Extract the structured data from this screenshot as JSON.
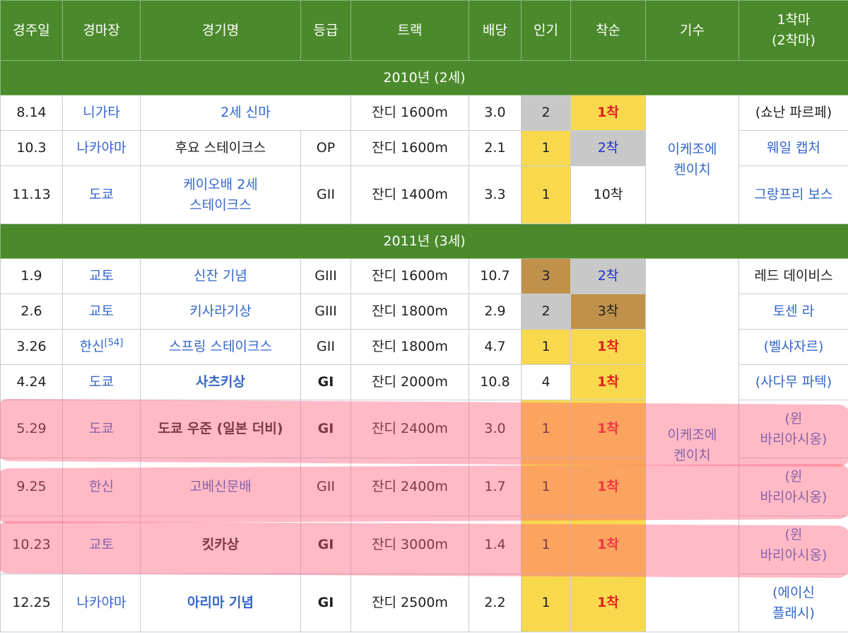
{
  "table": {
    "headers": [
      "경주일",
      "경마장",
      "경기명",
      "등급",
      "트랙",
      "배당",
      "인기",
      "착순",
      "기수",
      [
        "1착마",
        "(2착마)"
      ]
    ],
    "sections": [
      {
        "title": "2010년 (2세)",
        "jockey": [
          "이케조에",
          "켄이치"
        ],
        "rows": [
          {
            "date": "8.14",
            "venue": "니가타",
            "race": "2세 신마",
            "track": "잔디 1600m",
            "odds": "3.0",
            "popularity": 2,
            "finish": "1착",
            "winner": "(쇼난 파르페)",
            "link": false
          },
          {
            "date": "10.3",
            "venue": "나카야마",
            "race": "후요 스테이크스",
            "race_link": false,
            "grade": "OP",
            "track": "잔디 1600m",
            "odds": "2.1",
            "popularity": 1,
            "finish": "2착",
            "winner": "웨일 캡처"
          },
          {
            "date": "11.13",
            "venue": "도쿄",
            "race": [
              "케이오배 2세",
              "스테이크스"
            ],
            "grade": "GII",
            "track": "잔디 1400m",
            "odds": "3.3",
            "popularity": 1,
            "finish": "10착",
            "winner": "그랑프리 보스"
          }
        ]
      },
      {
        "title": "2011년 (3세)",
        "jockey": [
          "이케조에",
          "켄이치"
        ],
        "rows": [
          {
            "date": "1.9",
            "venue": "교토",
            "race": "신잔 기념",
            "grade": "GIII",
            "track": "잔디 1600m",
            "odds": "10.7",
            "popularity": 3,
            "finish": "2착",
            "winner": "레드 데이비스",
            "link": false
          },
          {
            "date": "2.6",
            "venue": "교토",
            "race": "키사라기상",
            "grade": "GIII",
            "track": "잔디 1800m",
            "odds": "2.9",
            "popularity": 2,
            "finish": "3착",
            "winner": "토센 라"
          },
          {
            "date": "3.26",
            "venue": "한신",
            "venue_note": "[54]",
            "race": "스프링 스테이크스",
            "grade": "GII",
            "track": "잔디 1800m",
            "odds": "4.7",
            "popularity": 1,
            "finish": "1착",
            "winner": "(벨샤자르)"
          },
          {
            "date": "4.24",
            "venue": "도쿄",
            "race": "사츠키상",
            "grade": "GI",
            "bold": true,
            "track": "잔디 2000m",
            "odds": "10.8",
            "popularity": 4,
            "finish": "1착",
            "winner": "(사다무 파텍)"
          },
          {
            "date": "5.29",
            "venue": "도쿄",
            "race": "도쿄 우준 (일본 더비)",
            "race_link": false,
            "grade": "GI",
            "bold": true,
            "track": "잔디 2400m",
            "odds": "3.0",
            "popularity": 1,
            "finish": "1착",
            "winner": [
              "(윈",
              "바리아시옹)"
            ]
          },
          {
            "date": "9.25",
            "venue": "한신",
            "race": "고베신문배",
            "grade": "GII",
            "track": "잔디 2400m",
            "odds": "1.7",
            "popularity": 1,
            "finish": "1착",
            "winner": [
              "(윈",
              "바리아시옹)"
            ]
          },
          {
            "date": "10.23",
            "venue": "교토",
            "race": "킷카상",
            "race_link": false,
            "grade": "GI",
            "bold": true,
            "track": "잔디 3000m",
            "odds": "1.4",
            "popularity": 1,
            "finish": "1착",
            "winner": [
              "(윈",
              "바리아시옹)"
            ]
          },
          {
            "date": "12.25",
            "venue": "나카야마",
            "race": "아리마 기념",
            "grade": "GI",
            "bold": true,
            "track": "잔디 2500m",
            "odds": "2.2",
            "popularity": 1,
            "finish": "1착",
            "winner": [
              "(에이신",
              "플래시)"
            ]
          }
        ]
      }
    ]
  }
}
